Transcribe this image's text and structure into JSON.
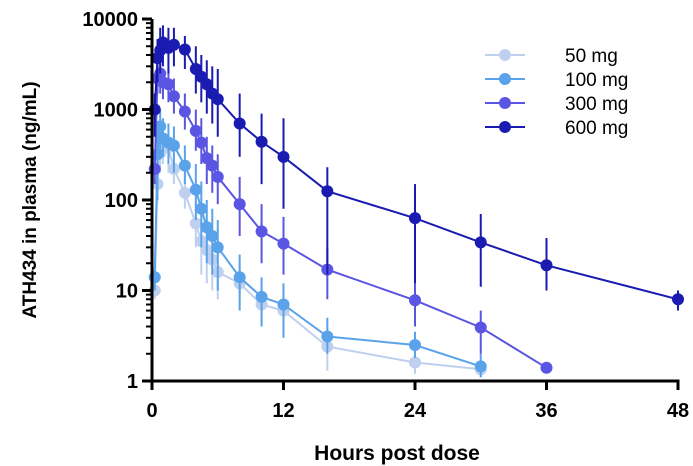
{
  "chart_data": {
    "type": "line",
    "title": "",
    "xlabel": "Hours post dose",
    "ylabel": "ATH434 in plasma (ng/mL)",
    "xlim": [
      0,
      48
    ],
    "ylim": [
      1,
      10000
    ],
    "y_scale": "log",
    "x_ticks": [
      "0",
      "12",
      "24",
      "36",
      "48"
    ],
    "y_ticks": [
      "1",
      "10",
      "100",
      "1000",
      "10000"
    ],
    "grid": false,
    "legend_position": "top-right",
    "series": [
      {
        "name": "50 mg",
        "color": "#bfd0ef",
        "x": [
          0.25,
          0.5,
          0.75,
          1,
          1.5,
          2,
          3,
          4,
          4.5,
          5,
          5.5,
          6,
          8,
          10,
          12,
          16,
          24,
          30
        ],
        "y": [
          10,
          150,
          330,
          420,
          380,
          220,
          120,
          55,
          35,
          28,
          22,
          16,
          12,
          7,
          6,
          2.4,
          1.6,
          1.35
        ],
        "err_low": [
          8,
          90,
          200,
          250,
          200,
          150,
          80,
          30,
          15,
          12,
          10,
          8,
          8,
          4,
          4,
          1.3,
          1.2,
          1.1
        ],
        "err_high": [
          12,
          350,
          500,
          600,
          500,
          320,
          200,
          100,
          70,
          60,
          50,
          35,
          20,
          11,
          9,
          4,
          2,
          1.6
        ]
      },
      {
        "name": "100 mg",
        "color": "#5aa2ea",
        "x": [
          0.25,
          0.5,
          0.75,
          1,
          1.5,
          2,
          3,
          4,
          4.5,
          5,
          5.5,
          6,
          8,
          10,
          12,
          16,
          24,
          30
        ],
        "y": [
          14,
          320,
          650,
          480,
          430,
          400,
          240,
          130,
          80,
          50,
          40,
          30,
          14,
          8.5,
          7,
          3.1,
          2.5,
          1.45
        ],
        "err_low": [
          10,
          100,
          350,
          300,
          250,
          200,
          150,
          60,
          30,
          20,
          15,
          10,
          6,
          4,
          3,
          2,
          1.8,
          1.1
        ],
        "err_high": [
          18,
          700,
          1000,
          800,
          700,
          650,
          400,
          250,
          160,
          100,
          80,
          60,
          25,
          14,
          12,
          5,
          3.5,
          2
        ]
      },
      {
        "name": "300 mg",
        "color": "#5a55e2",
        "x": [
          0.25,
          0.5,
          0.75,
          1,
          1.5,
          2,
          3,
          4,
          4.5,
          5,
          5.5,
          6,
          8,
          10,
          12,
          16,
          24,
          30,
          36
        ],
        "y": [
          220,
          2200,
          2500,
          2000,
          1900,
          1400,
          950,
          580,
          430,
          290,
          240,
          180,
          90,
          45,
          33,
          17,
          7.8,
          3.9,
          1.4
        ],
        "err_low": [
          150,
          1500,
          1500,
          1300,
          1200,
          900,
          600,
          350,
          250,
          150,
          120,
          90,
          40,
          20,
          15,
          8,
          4,
          2,
          1.3
        ],
        "err_high": [
          300,
          3000,
          3500,
          2800,
          2800,
          2200,
          1500,
          1000,
          800,
          500,
          400,
          320,
          180,
          90,
          65,
          30,
          12,
          6,
          1.5
        ]
      },
      {
        "name": "600 mg",
        "color": "#1a1bb0",
        "x": [
          0.25,
          0.5,
          0.75,
          1,
          1.5,
          2,
          3,
          4,
          4.5,
          5,
          5.5,
          6,
          8,
          10,
          12,
          16,
          24,
          30,
          36,
          48
        ],
        "y": [
          1000,
          3700,
          4500,
          5500,
          4800,
          5200,
          4600,
          2800,
          2300,
          1900,
          1500,
          1300,
          700,
          440,
          300,
          125,
          63,
          34,
          19,
          8
        ],
        "err_low": [
          500,
          2000,
          2500,
          3000,
          2500,
          3000,
          2800,
          1500,
          1200,
          900,
          700,
          500,
          300,
          150,
          80,
          15,
          12,
          11,
          10,
          6
        ],
        "err_high": [
          1500,
          6000,
          8000,
          8500,
          8000,
          8000,
          6500,
          5000,
          4000,
          3500,
          3000,
          2800,
          1500,
          900,
          800,
          230,
          150,
          70,
          38,
          10
        ]
      }
    ]
  }
}
